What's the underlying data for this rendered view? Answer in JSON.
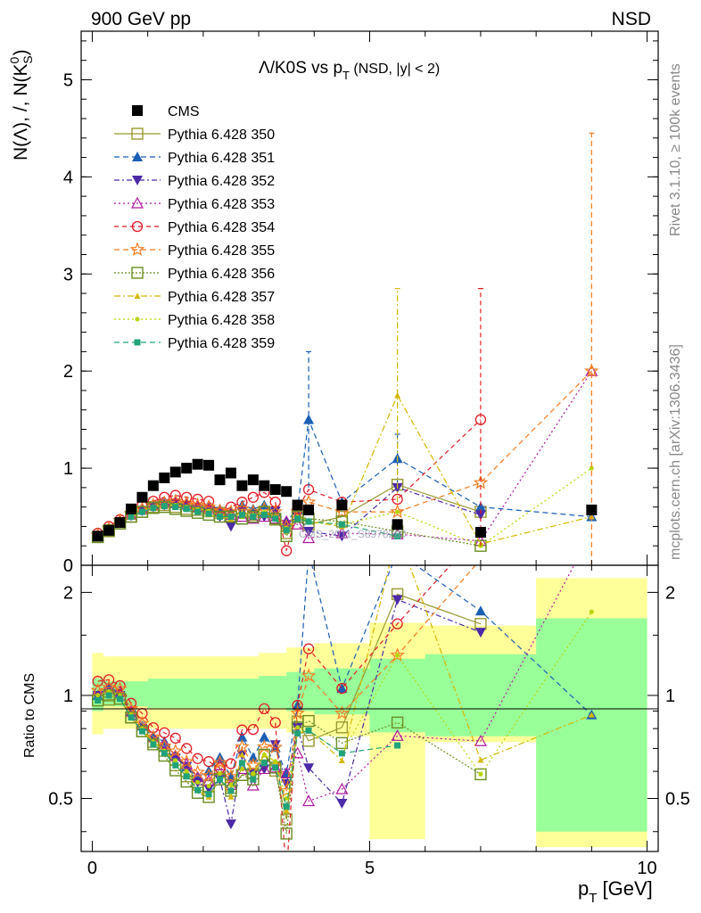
{
  "header": {
    "left": "900 GeV pp",
    "right": "NSD"
  },
  "side": {
    "rivet": "Rivet 3.1.10, ≥ 100k events",
    "mcplots": "mcplots.cern.ch [arXiv:1306.3436]"
  },
  "chart_data": {
    "type": "scatter",
    "title_parts": {
      "main": "Λ/K0S vs p",
      "sub": "T",
      "tail": " (NSD, |y| < 2)"
    },
    "ylabel": {
      "base": "N(Λ), /, N(K",
      "sup": "0",
      "sub": "S",
      "close": ")"
    },
    "xlabel": {
      "base": "p",
      "sub": "T",
      "unit": " [GeV]"
    },
    "ratio_ylabel": "Ratio to CMS",
    "watermark": "CMS_2011_S8978280",
    "xlim": [
      -0.2,
      10.2
    ],
    "ylim_main": [
      0,
      5.5
    ],
    "ylim_ratio_log": [
      0.35,
      2.4
    ],
    "xticks": [
      0,
      5,
      10
    ],
    "yticks_main": [
      0,
      1,
      2,
      3,
      4,
      5
    ],
    "yticks_ratio": [
      0.5,
      1,
      2
    ],
    "cms": {
      "name": "CMS",
      "x": [
        0.1,
        0.3,
        0.5,
        0.7,
        0.9,
        1.1,
        1.3,
        1.5,
        1.7,
        1.9,
        2.1,
        2.3,
        2.5,
        2.7,
        2.9,
        3.1,
        3.3,
        3.5,
        3.7,
        3.9,
        4.5,
        5.5,
        7.0,
        9.0
      ],
      "y": [
        0.3,
        0.36,
        0.44,
        0.58,
        0.7,
        0.82,
        0.9,
        0.96,
        1.0,
        1.04,
        1.03,
        0.88,
        0.95,
        0.82,
        0.88,
        0.82,
        0.78,
        0.76,
        0.62,
        0.57,
        0.62,
        0.42,
        0.34,
        0.57
      ],
      "ratio_band_inner": [
        [
          0,
          0.9,
          1.12
        ],
        [
          0.2,
          0.93,
          1.1
        ],
        [
          1,
          0.92,
          1.12
        ],
        [
          3,
          0.92,
          1.14
        ],
        [
          3.5,
          0.9,
          1.17
        ],
        [
          4,
          0.88,
          1.2
        ],
        [
          5,
          0.78,
          1.28
        ],
        [
          6,
          0.76,
          1.32
        ],
        [
          8,
          0.4,
          1.68
        ],
        [
          10,
          0.4,
          1.68
        ]
      ],
      "ratio_band_outer": [
        [
          0,
          0.77,
          1.33
        ],
        [
          0.2,
          0.8,
          1.3
        ],
        [
          1,
          0.8,
          1.3
        ],
        [
          3,
          0.8,
          1.33
        ],
        [
          3.5,
          0.78,
          1.38
        ],
        [
          4,
          0.76,
          1.42
        ],
        [
          5,
          0.38,
          1.63
        ],
        [
          6,
          0.73,
          1.6
        ],
        [
          8,
          0.36,
          2.2
        ],
        [
          10,
          0.36,
          2.2
        ]
      ]
    },
    "series": [
      {
        "name": "Pythia 6.428 350",
        "color": "#999933",
        "marker": "square-open",
        "dash": "",
        "x": [
          0.1,
          0.3,
          0.5,
          0.7,
          0.9,
          1.1,
          1.3,
          1.5,
          1.7,
          1.9,
          2.1,
          2.3,
          2.5,
          2.7,
          2.9,
          3.1,
          3.3,
          3.5,
          3.7,
          3.9,
          4.5,
          5.5,
          7.0,
          9.0
        ],
        "y": [
          0.29,
          0.35,
          0.43,
          0.5,
          0.55,
          0.6,
          0.62,
          0.6,
          0.58,
          0.57,
          0.56,
          0.54,
          0.51,
          0.48,
          0.52,
          0.55,
          0.47,
          0.33,
          0.52,
          0.42,
          0.5,
          0.83,
          0.55,
          null
        ]
      },
      {
        "name": "Pythia 6.428 351",
        "color": "#1a5fb4",
        "marker": "triangle-up",
        "dash": "6,4",
        "x": [
          0.1,
          0.3,
          0.5,
          0.7,
          0.9,
          1.1,
          1.3,
          1.5,
          1.7,
          1.9,
          2.1,
          2.3,
          2.5,
          2.7,
          2.9,
          3.1,
          3.3,
          3.5,
          3.7,
          3.9,
          4.5,
          5.5,
          7.0,
          9.0
        ],
        "y": [
          0.3,
          0.38,
          0.45,
          0.52,
          0.57,
          0.62,
          0.66,
          0.64,
          0.62,
          0.6,
          0.62,
          0.58,
          0.55,
          0.62,
          0.58,
          0.62,
          0.55,
          0.45,
          0.58,
          1.5,
          0.65,
          1.1,
          0.6,
          0.5
        ]
      },
      {
        "name": "Pythia 6.428 352",
        "color": "#4b2aa8",
        "marker": "triangle-down",
        "dash": "6,3,2,3",
        "x": [
          0.1,
          0.3,
          0.5,
          0.7,
          0.9,
          1.1,
          1.3,
          1.5,
          1.7,
          1.9,
          2.1,
          2.3,
          2.5,
          2.7,
          2.9,
          3.1,
          3.3,
          3.5,
          3.7,
          3.9,
          4.5,
          5.5,
          7.0,
          9.0
        ],
        "y": [
          0.3,
          0.37,
          0.44,
          0.51,
          0.56,
          0.6,
          0.62,
          0.63,
          0.62,
          0.58,
          0.55,
          0.5,
          0.4,
          0.55,
          0.52,
          0.5,
          0.56,
          0.42,
          0.5,
          0.35,
          0.3,
          0.8,
          0.52,
          null
        ]
      },
      {
        "name": "Pythia 6.428 353",
        "color": "#b0179d",
        "marker": "triangle-up-open",
        "dash": "2,3",
        "x": [
          0.1,
          0.3,
          0.5,
          0.7,
          0.9,
          1.1,
          1.3,
          1.5,
          1.7,
          1.9,
          2.1,
          2.3,
          2.5,
          2.7,
          2.9,
          3.1,
          3.3,
          3.5,
          3.7,
          3.9,
          4.5,
          5.5,
          7.0,
          9.0
        ],
        "y": [
          0.31,
          0.38,
          0.45,
          0.52,
          0.58,
          0.62,
          0.65,
          0.64,
          0.63,
          0.6,
          0.58,
          0.55,
          0.52,
          0.5,
          0.48,
          0.5,
          0.48,
          0.45,
          0.42,
          0.28,
          0.33,
          0.32,
          0.25,
          2.0
        ]
      },
      {
        "name": "Pythia 6.428 354",
        "color": "#e01b24",
        "marker": "circle-open",
        "dash": "5,4",
        "x": [
          0.1,
          0.3,
          0.5,
          0.7,
          0.9,
          1.1,
          1.3,
          1.5,
          1.7,
          1.9,
          2.1,
          2.3,
          2.5,
          2.7,
          2.9,
          3.1,
          3.3,
          3.5,
          3.7,
          3.9,
          4.5,
          5.5,
          7.0,
          9.0
        ],
        "y": [
          0.33,
          0.4,
          0.47,
          0.55,
          0.62,
          0.66,
          0.7,
          0.72,
          0.7,
          0.68,
          0.66,
          0.54,
          0.6,
          0.65,
          0.7,
          0.75,
          0.65,
          0.15,
          0.58,
          0.78,
          0.65,
          0.68,
          1.5,
          null
        ]
      },
      {
        "name": "Pythia 6.428 355",
        "color": "#f57c20",
        "marker": "star-open",
        "dash": "6,4",
        "x": [
          0.1,
          0.3,
          0.5,
          0.7,
          0.9,
          1.1,
          1.3,
          1.5,
          1.7,
          1.9,
          2.1,
          2.3,
          2.5,
          2.7,
          2.9,
          3.1,
          3.3,
          3.5,
          3.7,
          3.9,
          4.5,
          5.5,
          7.0,
          9.0
        ],
        "y": [
          0.31,
          0.38,
          0.46,
          0.53,
          0.58,
          0.62,
          0.64,
          0.66,
          0.64,
          0.62,
          0.6,
          0.56,
          0.55,
          0.58,
          0.55,
          0.58,
          0.55,
          0.4,
          0.55,
          0.65,
          0.55,
          0.55,
          0.85,
          2.0
        ]
      },
      {
        "name": "Pythia 6.428 356",
        "color": "#6b8e23",
        "marker": "square-open",
        "dash": "2,2",
        "x": [
          0.1,
          0.3,
          0.5,
          0.7,
          0.9,
          1.1,
          1.3,
          1.5,
          1.7,
          1.9,
          2.1,
          2.3,
          2.5,
          2.7,
          2.9,
          3.1,
          3.3,
          3.5,
          3.7,
          3.9,
          4.5,
          5.5,
          7.0,
          9.0
        ],
        "y": [
          0.29,
          0.36,
          0.43,
          0.5,
          0.55,
          0.59,
          0.6,
          0.58,
          0.56,
          0.54,
          0.52,
          0.5,
          0.5,
          0.48,
          0.5,
          0.55,
          0.48,
          0.3,
          0.5,
          0.48,
          0.45,
          0.35,
          0.2,
          null
        ]
      },
      {
        "name": "Pythia 6.428 357",
        "color": "#d4b800",
        "marker": "tri-small",
        "dash": "7,3,2,3",
        "x": [
          0.1,
          0.3,
          0.5,
          0.7,
          0.9,
          1.1,
          1.3,
          1.5,
          1.7,
          1.9,
          2.1,
          2.3,
          2.5,
          2.7,
          2.9,
          3.1,
          3.3,
          3.5,
          3.7,
          3.9,
          4.5,
          5.5,
          7.0,
          9.0
        ],
        "y": [
          0.29,
          0.36,
          0.43,
          0.5,
          0.55,
          0.6,
          0.62,
          0.61,
          0.6,
          0.55,
          0.52,
          0.5,
          0.48,
          0.55,
          0.52,
          0.55,
          0.5,
          0.35,
          0.48,
          0.45,
          0.4,
          1.75,
          0.22,
          0.5
        ]
      },
      {
        "name": "Pythia 6.428 358",
        "color": "#b8d400",
        "marker": "dot-small",
        "dash": "2,3",
        "x": [
          0.1,
          0.3,
          0.5,
          0.7,
          0.9,
          1.1,
          1.3,
          1.5,
          1.7,
          1.9,
          2.1,
          2.3,
          2.5,
          2.7,
          2.9,
          3.1,
          3.3,
          3.5,
          3.7,
          3.9,
          4.5,
          5.5,
          7.0,
          9.0
        ],
        "y": [
          0.3,
          0.37,
          0.44,
          0.51,
          0.56,
          0.6,
          0.62,
          0.62,
          0.6,
          0.58,
          0.56,
          0.52,
          0.52,
          0.5,
          0.52,
          0.55,
          0.5,
          0.38,
          0.5,
          0.45,
          0.42,
          0.55,
          0.2,
          1.0
        ]
      },
      {
        "name": "Pythia 6.428 359",
        "color": "#21a37a",
        "marker": "square-small",
        "dash": "6,4",
        "x": [
          0.1,
          0.3,
          0.5,
          0.7,
          0.9,
          1.1,
          1.3,
          1.5,
          1.7,
          1.9,
          2.1,
          2.3,
          2.5,
          2.7,
          2.9,
          3.1,
          3.3,
          3.5,
          3.7,
          3.9,
          4.5,
          5.5,
          7.0,
          9.0
        ],
        "y": [
          0.29,
          0.36,
          0.43,
          0.5,
          0.55,
          0.59,
          0.61,
          0.6,
          0.58,
          0.55,
          0.53,
          0.5,
          0.5,
          0.52,
          0.5,
          0.52,
          0.48,
          0.36,
          0.48,
          0.45,
          0.42,
          0.3,
          null,
          null
        ]
      }
    ],
    "error_bars": [
      {
        "series": 1,
        "x": 3.9,
        "lo": 0.8,
        "hi": 2.2
      },
      {
        "series": 1,
        "x": 5.5,
        "lo": 0.85,
        "hi": 1.35
      },
      {
        "series": 7,
        "x": 5.5,
        "lo": 0.65,
        "hi": 2.85
      },
      {
        "series": 4,
        "x": 7.0,
        "lo": 0.2,
        "hi": 2.85
      },
      {
        "series": 5,
        "x": 9.0,
        "lo": 0.0,
        "hi": 4.45
      }
    ]
  }
}
